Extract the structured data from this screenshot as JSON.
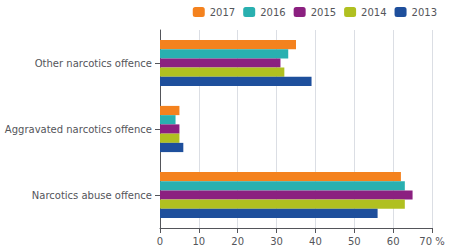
{
  "chart_data": {
    "type": "bar",
    "orientation": "horizontal",
    "categories": [
      "Other narcotics offence",
      "Aggravated narcotics offence",
      "Narcotics abuse offence"
    ],
    "series": [
      {
        "name": "2017",
        "color": "#f4821e",
        "values": [
          35,
          5,
          62
        ]
      },
      {
        "name": "2016",
        "color": "#29b0b0",
        "values": [
          33,
          4,
          63
        ]
      },
      {
        "name": "2015",
        "color": "#8b2080",
        "values": [
          31,
          5,
          65
        ]
      },
      {
        "name": "2014",
        "color": "#b0c020",
        "values": [
          32,
          5,
          63
        ]
      },
      {
        "name": "2013",
        "color": "#1e4f9c",
        "values": [
          39,
          6,
          56
        ]
      }
    ],
    "xlim": [
      0,
      70
    ],
    "xticks": [
      0,
      10,
      20,
      30,
      40,
      50,
      60,
      {
        "value": 70,
        "label": "70 %"
      }
    ],
    "grid": true,
    "legend": "upper right"
  }
}
